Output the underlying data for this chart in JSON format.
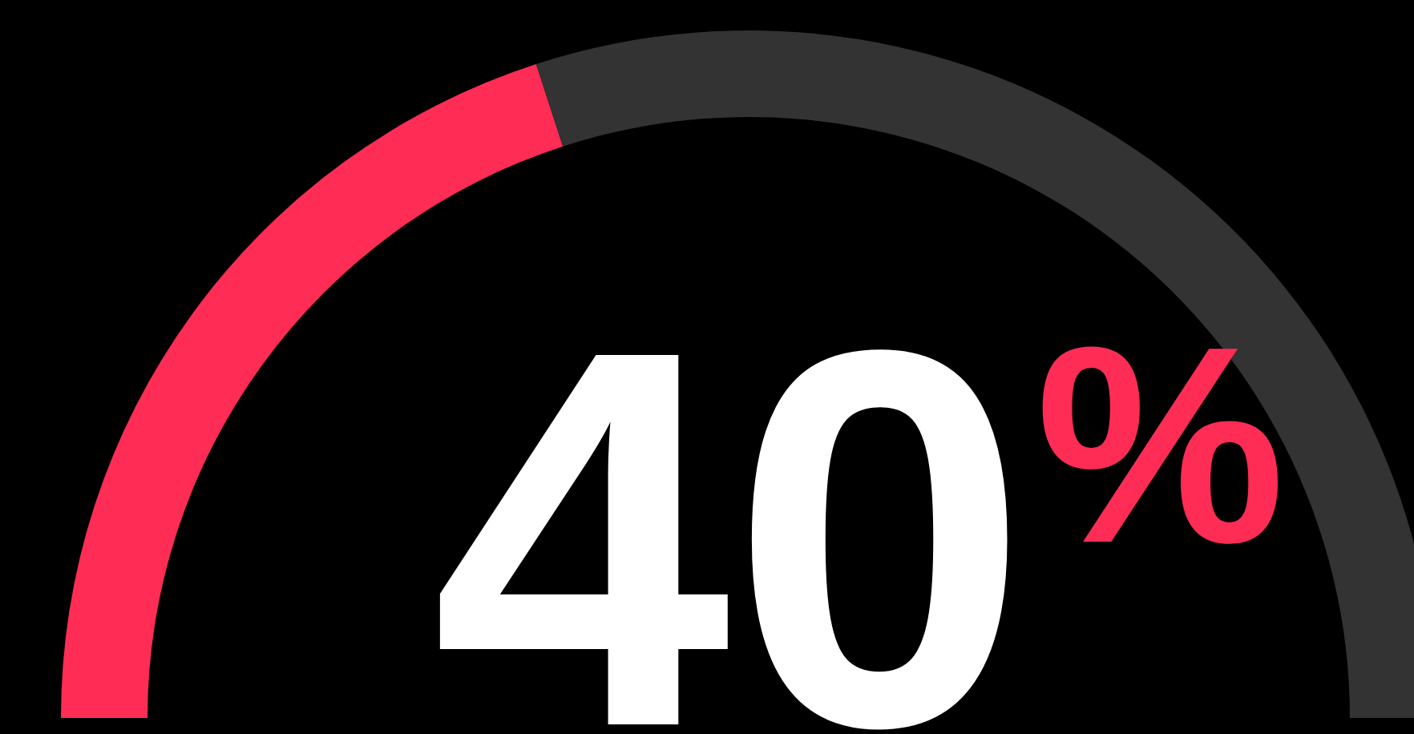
{
  "chart_data": {
    "type": "donut",
    "categories": [
      null,
      null
    ],
    "values": [
      40,
      60
    ],
    "colors": [
      "#ff2d55",
      "#333333"
    ],
    "annotations": [
      "40%"
    ]
  }
}
